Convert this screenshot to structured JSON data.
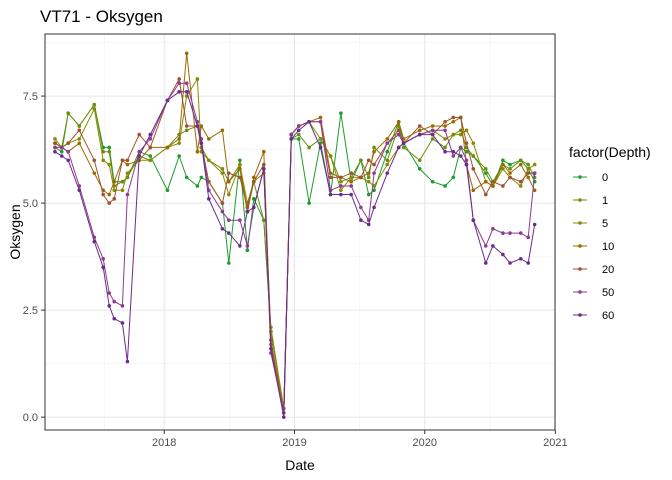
{
  "chart_data": {
    "type": "line",
    "title": "VT71  -  Oksygen",
    "xlabel": "Date",
    "ylabel": "Oksygen",
    "xlim": [
      "2017-02-01",
      "2020-12-31"
    ],
    "ylim": [
      -0.3,
      8.95
    ],
    "x_ticks": [
      "2018-01-01",
      "2019-01-01",
      "2020-01-01",
      "2021-01-01"
    ],
    "x_tick_labels": [
      "2018",
      "2019",
      "2020",
      "2021"
    ],
    "y_ticks": [
      0,
      2.5,
      5,
      7.5
    ],
    "y_tick_labels": [
      "0.0",
      "2.5",
      "5.0",
      "7.5"
    ],
    "grid": true,
    "legend": {
      "title": "factor(Depth)",
      "position": "right"
    },
    "dates": [
      "2017-03-01",
      "2017-03-20",
      "2017-04-07",
      "2017-05-08",
      "2017-06-19",
      "2017-07-14",
      "2017-07-31",
      "2017-08-14",
      "2017-09-06",
      "2017-09-20",
      "2017-10-23",
      "2017-11-23",
      "2018-01-10",
      "2018-02-12",
      "2018-03-05",
      "2018-04-04",
      "2018-04-15",
      "2018-05-06",
      "2018-06-13",
      "2018-07-01",
      "2018-08-01",
      "2018-08-22",
      "2018-09-09",
      "2018-10-07",
      "2018-10-27",
      "2018-12-02",
      "2018-12-23",
      "2019-01-13",
      "2019-02-11",
      "2019-03-15",
      "2019-04-12",
      "2019-05-11",
      "2019-06-09",
      "2019-07-06",
      "2019-07-28",
      "2019-08-12",
      "2019-09-18",
      "2019-10-20",
      "2019-11-03",
      "2019-12-18",
      "2020-01-23",
      "2020-02-27",
      "2020-03-21",
      "2020-04-11",
      "2020-04-27",
      "2020-05-16",
      "2020-06-20",
      "2020-07-10",
      "2020-08-07",
      "2020-08-27",
      "2020-09-26",
      "2020-10-17",
      "2020-11-04"
    ],
    "series": [
      {
        "name": "0",
        "color": "#1b9e2b",
        "values": [
          6.3,
          6.2,
          7.1,
          6.8,
          7.3,
          6.3,
          6.3,
          5.5,
          5.5,
          5.6,
          6.2,
          6.1,
          5.3,
          6.1,
          5.6,
          5.4,
          5.6,
          5.5,
          5.0,
          3.6,
          6.0,
          3.9,
          5.1,
          4.6,
          2.0,
          0.2,
          6.5,
          6.5,
          5.0,
          6.4,
          5.2,
          7.1,
          5.5,
          6.0,
          5.2,
          5.3,
          6.2,
          6.9,
          6.4,
          5.8,
          5.5,
          5.4,
          5.6,
          6.3,
          6.2,
          6.1,
          5.7,
          5.4,
          6.0,
          5.9,
          6.0,
          5.8,
          5.5
        ]
      },
      {
        "name": "1",
        "color": "#6b8e0e",
        "values": [
          6.4,
          6.3,
          7.1,
          6.8,
          7.3,
          6.2,
          6.2,
          5.4,
          5.5,
          5.6,
          6.1,
          6.0,
          6.3,
          6.6,
          6.7,
          6.8,
          6.3,
          6.0,
          5.8,
          5.5,
          5.9,
          4.8,
          5.5,
          4.6,
          2.1,
          0.2,
          6.5,
          6.6,
          6.3,
          6.5,
          6.1,
          5.5,
          5.6,
          6.0,
          5.6,
          6.3,
          6.0,
          6.8,
          6.3,
          6.0,
          6.5,
          6.3,
          6.6,
          6.7,
          6.3,
          6.1,
          5.8,
          5.5,
          5.9,
          5.8,
          6.0,
          5.9,
          5.6
        ]
      },
      {
        "name": "5",
        "color": "#8a8a00",
        "values": [
          6.5,
          6.3,
          6.4,
          6.5,
          7.2,
          6.0,
          5.9,
          5.3,
          5.3,
          5.7,
          6.0,
          6.0,
          6.3,
          6.4,
          7.5,
          7.9,
          6.2,
          6.0,
          5.7,
          5.2,
          5.9,
          5.0,
          5.5,
          5.7,
          2.0,
          0.2,
          6.6,
          6.8,
          6.9,
          6.5,
          6.1,
          5.3,
          5.6,
          5.6,
          5.5,
          5.4,
          5.9,
          6.3,
          6.4,
          6.6,
          6.7,
          6.5,
          6.6,
          6.6,
          6.7,
          6.4,
          5.5,
          5.4,
          5.8,
          5.6,
          5.4,
          5.8,
          5.9
        ]
      },
      {
        "name": "10",
        "color": "#9a6a00",
        "values": [
          6.4,
          6.3,
          6.2,
          6.4,
          5.7,
          5.3,
          5.2,
          5.5,
          6.0,
          5.9,
          6.0,
          6.3,
          6.3,
          6.5,
          8.5,
          6.2,
          6.8,
          6.5,
          6.7,
          5.5,
          5.8,
          4.8,
          5.6,
          6.2,
          1.7,
          0.1,
          6.6,
          6.8,
          6.9,
          7.0,
          5.7,
          5.6,
          5.5,
          5.6,
          5.7,
          6.2,
          6.5,
          6.9,
          6.5,
          6.7,
          6.8,
          6.8,
          6.9,
          7.0,
          5.9,
          5.3,
          5.5,
          5.4,
          5.9,
          5.7,
          5.9,
          5.6,
          5.3
        ]
      },
      {
        "name": "20",
        "color": "#a0522d",
        "values": [
          6.4,
          6.3,
          6.4,
          6.7,
          6.0,
          5.2,
          5.0,
          5.1,
          6.0,
          6.0,
          6.6,
          6.3,
          7.4,
          7.9,
          6.8,
          6.8,
          6.4,
          5.5,
          5.0,
          5.7,
          5.6,
          4.9,
          5.5,
          5.9,
          1.8,
          0.1,
          6.6,
          6.8,
          6.9,
          6.9,
          5.6,
          5.6,
          5.7,
          5.6,
          6.0,
          5.9,
          6.4,
          6.7,
          6.4,
          6.8,
          6.6,
          6.9,
          7.0,
          7.0,
          6.4,
          5.8,
          5.2,
          5.5,
          5.4,
          5.6,
          5.5,
          5.7,
          5.7
        ]
      },
      {
        "name": "50",
        "color": "#8e3a8e",
        "values": [
          6.3,
          6.3,
          6.2,
          5.4,
          4.2,
          3.7,
          2.9,
          2.7,
          2.6,
          5.2,
          6.2,
          6.5,
          7.4,
          7.8,
          7.8,
          6.9,
          6.5,
          5.3,
          4.8,
          4.6,
          4.6,
          4.0,
          4.9,
          5.8,
          1.5,
          0.1,
          6.6,
          6.8,
          6.9,
          6.9,
          5.3,
          5.4,
          5.4,
          4.9,
          4.6,
          5.7,
          6.4,
          6.6,
          6.4,
          6.6,
          6.7,
          6.7,
          6.1,
          6.3,
          6.0,
          4.6,
          4.0,
          4.4,
          4.3,
          4.3,
          4.3,
          4.2,
          5.7
        ]
      },
      {
        "name": "60",
        "color": "#6a2c8c",
        "values": [
          6.2,
          6.1,
          6.0,
          5.3,
          4.1,
          3.5,
          2.6,
          2.3,
          2.2,
          1.3,
          6.1,
          6.6,
          7.4,
          7.6,
          7.6,
          6.8,
          6.4,
          5.1,
          4.4,
          4.3,
          4.0,
          4.8,
          4.9,
          5.8,
          1.6,
          0.0,
          6.5,
          6.7,
          6.9,
          6.3,
          5.2,
          5.2,
          5.2,
          4.6,
          4.5,
          4.9,
          5.7,
          6.3,
          6.4,
          6.6,
          6.6,
          6.2,
          6.2,
          6.1,
          5.9,
          4.6,
          3.6,
          4.0,
          3.8,
          3.6,
          3.7,
          3.6,
          4.5
        ]
      }
    ]
  }
}
